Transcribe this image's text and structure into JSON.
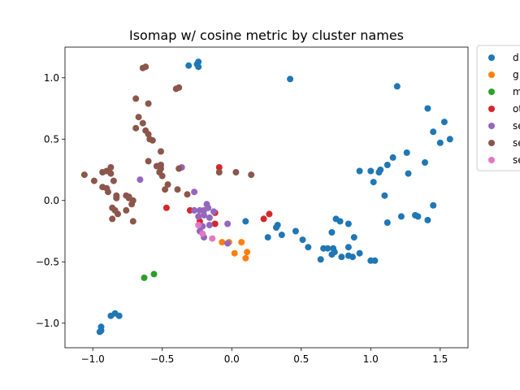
{
  "chart_data": {
    "type": "scatter",
    "title": "Isomap w/ cosine metric by cluster names",
    "xlabel": "",
    "ylabel": "",
    "xlim": [
      -1.2,
      1.7
    ],
    "ylim": [
      -1.2,
      1.25
    ],
    "xticks": [
      -1.0,
      -0.5,
      0.0,
      0.5,
      1.0,
      1.5
    ],
    "xtick_labels": [
      "−1.0",
      "−0.5",
      "0.0",
      "0.5",
      "1.0",
      "1.5"
    ],
    "yticks": [
      -1.0,
      -0.5,
      0.0,
      0.5,
      1.0
    ],
    "ytick_labels": [
      "−1.0",
      "−0.5",
      "0.0",
      "0.5",
      "1.0"
    ],
    "grid": false,
    "legend_placement": "outside-top-right",
    "series": [
      {
        "name": "d",
        "color": "#1f77b4",
        "points": [
          [
            -0.95,
            -1.07
          ],
          [
            -0.94,
            -1.06
          ],
          [
            -0.94,
            -1.03
          ],
          [
            -0.87,
            -0.94
          ],
          [
            -0.84,
            -0.92
          ],
          [
            -0.81,
            -0.94
          ],
          [
            -0.31,
            1.1
          ],
          [
            -0.25,
            1.11
          ],
          [
            -0.24,
            1.13
          ],
          [
            -0.24,
            1.09
          ],
          [
            0.42,
            0.99
          ],
          [
            1.19,
            0.93
          ],
          [
            1.41,
            0.75
          ],
          [
            1.53,
            0.64
          ],
          [
            1.45,
            0.56
          ],
          [
            1.57,
            0.5
          ],
          [
            1.5,
            0.47
          ],
          [
            1.16,
            0.35
          ],
          [
            1.26,
            0.39
          ],
          [
            1.39,
            0.31
          ],
          [
            1.12,
            0.29
          ],
          [
            1.27,
            0.22
          ],
          [
            1.07,
            0.25
          ],
          [
            1.06,
            0.23
          ],
          [
            0.92,
            0.24
          ],
          [
            1.0,
            0.24
          ],
          [
            1.02,
            0.15
          ],
          [
            1.1,
            0.04
          ],
          [
            1.45,
            -0.04
          ],
          [
            1.32,
            -0.12
          ],
          [
            1.34,
            -0.13
          ],
          [
            1.41,
            -0.16
          ],
          [
            1.22,
            -0.13
          ],
          [
            1.12,
            -0.18
          ],
          [
            0.1,
            -0.17
          ],
          [
            0.33,
            -0.2
          ],
          [
            0.32,
            -0.22
          ],
          [
            0.46,
            -0.25
          ],
          [
            0.36,
            -0.28
          ],
          [
            0.26,
            -0.3
          ],
          [
            0.51,
            -0.32
          ],
          [
            0.55,
            -0.38
          ],
          [
            0.75,
            -0.15
          ],
          [
            0.78,
            -0.17
          ],
          [
            0.84,
            -0.19
          ],
          [
            0.72,
            -0.26
          ],
          [
            0.88,
            -0.3
          ],
          [
            0.66,
            -0.39
          ],
          [
            0.69,
            -0.39
          ],
          [
            0.73,
            -0.39
          ],
          [
            0.84,
            -0.38
          ],
          [
            0.74,
            -0.42
          ],
          [
            0.72,
            -0.44
          ],
          [
            0.79,
            -0.46
          ],
          [
            0.84,
            -0.45
          ],
          [
            0.87,
            -0.46
          ],
          [
            0.92,
            -0.43
          ],
          [
            0.64,
            -0.48
          ],
          [
            1.0,
            -0.49
          ],
          [
            1.03,
            -0.49
          ]
        ]
      },
      {
        "name": "g",
        "color": "#ff7f0e",
        "points": [
          [
            -0.07,
            -0.34
          ],
          [
            -0.02,
            -0.34
          ],
          [
            0.02,
            -0.43
          ],
          [
            0.07,
            -0.34
          ],
          [
            0.1,
            -0.47
          ],
          [
            0.11,
            -0.42
          ]
        ]
      },
      {
        "name": "m",
        "color": "#2ca02c",
        "points": [
          [
            -0.63,
            -0.63
          ],
          [
            -0.56,
            -0.6
          ]
        ]
      },
      {
        "name": "ot",
        "color": "#d62728",
        "points": [
          [
            -0.47,
            -0.06
          ],
          [
            -0.3,
            -0.08
          ],
          [
            -0.23,
            -0.17
          ],
          [
            -0.12,
            -0.1
          ],
          [
            -0.12,
            -0.19
          ],
          [
            -0.09,
            0.27
          ],
          [
            0.23,
            -0.15
          ],
          [
            0.27,
            -0.11
          ]
        ]
      },
      {
        "name": "se",
        "color": "#9467bd",
        "points": [
          [
            -0.66,
            0.17
          ],
          [
            -0.36,
            0.27
          ],
          [
            -0.27,
            0.07
          ],
          [
            -0.27,
            -0.08
          ],
          [
            -0.24,
            -0.13
          ],
          [
            -0.23,
            -0.08
          ],
          [
            -0.2,
            -0.08
          ],
          [
            -0.18,
            -0.03
          ],
          [
            -0.17,
            -0.06
          ],
          [
            -0.2,
            -0.12
          ],
          [
            -0.16,
            -0.14
          ],
          [
            -0.13,
            -0.09
          ],
          [
            -0.21,
            -0.21
          ],
          [
            -0.23,
            -0.25
          ],
          [
            -0.2,
            -0.3
          ],
          [
            -0.16,
            -0.2
          ],
          [
            -0.03,
            -0.19
          ],
          [
            -0.03,
            -0.35
          ]
        ]
      },
      {
        "name": "se",
        "color": "#8c564b",
        "points": [
          [
            -0.64,
            1.08
          ],
          [
            -0.62,
            1.09
          ],
          [
            -0.4,
            0.91
          ],
          [
            -0.38,
            0.92
          ],
          [
            -0.69,
            0.83
          ],
          [
            -0.6,
            0.79
          ],
          [
            -0.67,
            0.68
          ],
          [
            -0.69,
            0.59
          ],
          [
            -0.64,
            0.63
          ],
          [
            -0.62,
            0.57
          ],
          [
            -0.6,
            0.54
          ],
          [
            -0.59,
            0.5
          ],
          [
            -0.57,
            0.49
          ],
          [
            -0.51,
            0.4
          ],
          [
            -0.6,
            0.32
          ],
          [
            -0.51,
            0.29
          ],
          [
            -0.54,
            0.28
          ],
          [
            -0.51,
            0.26
          ],
          [
            -0.38,
            0.26
          ],
          [
            -0.52,
            0.23
          ],
          [
            -0.5,
            0.2
          ],
          [
            -0.46,
            0.13
          ],
          [
            -0.48,
            0.09
          ],
          [
            -0.39,
            0.09
          ],
          [
            -0.32,
            0.05
          ],
          [
            -0.09,
            0.23
          ],
          [
            0.03,
            0.23
          ],
          [
            0.14,
            0.21
          ],
          [
            -1.06,
            0.21
          ],
          [
            -0.99,
            0.16
          ],
          [
            -0.93,
            0.23
          ],
          [
            -0.9,
            0.24
          ],
          [
            -0.87,
            0.27
          ],
          [
            -0.87,
            0.22
          ],
          [
            -0.85,
            0.16
          ],
          [
            -0.93,
            0.11
          ],
          [
            -0.9,
            0.1
          ],
          [
            -0.89,
            0.07
          ],
          [
            -0.83,
            0.04
          ],
          [
            -0.83,
            0.02
          ],
          [
            -0.76,
            0.04
          ],
          [
            -0.74,
            0.03
          ],
          [
            -0.74,
            0.02
          ],
          [
            -0.71,
            0.0
          ],
          [
            -0.72,
            -0.03
          ],
          [
            -0.86,
            -0.06
          ],
          [
            -0.84,
            -0.08
          ],
          [
            -0.82,
            -0.11
          ],
          [
            -0.76,
            -0.08
          ],
          [
            -0.86,
            -0.15
          ],
          [
            -0.71,
            -0.17
          ]
        ]
      },
      {
        "name": "se",
        "color": "#e377c2",
        "points": [
          [
            -0.24,
            -0.2
          ],
          [
            -0.21,
            -0.27
          ],
          [
            -0.14,
            -0.31
          ]
        ]
      }
    ]
  }
}
